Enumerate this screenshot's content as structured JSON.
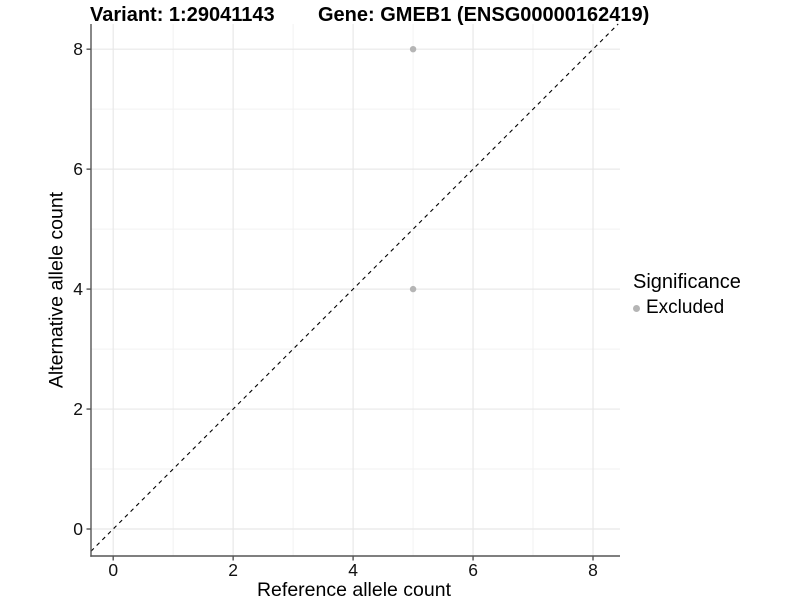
{
  "header": {
    "variant_title": "Variant: 1:29041143",
    "gene_title": "Gene: GMEB1 (ENSG00000162419)"
  },
  "legend": {
    "title": "Significance",
    "items": [
      {
        "label": "Excluded",
        "color": "#b5b5b5"
      }
    ]
  },
  "chart_data": {
    "type": "scatter",
    "title": "Variant: 1:29041143 | Gene: GMEB1 (ENSG00000162419)",
    "xlabel": "Reference allele count",
    "ylabel": "Alternative allele count",
    "xlim": [
      -0.37,
      8.45
    ],
    "ylim": [
      -0.45,
      8.42
    ],
    "x_ticks": [
      0,
      2,
      4,
      6,
      8
    ],
    "y_ticks": [
      0,
      2,
      4,
      6,
      8
    ],
    "x_minor_ticks": [
      1,
      3,
      5,
      7
    ],
    "y_minor_ticks": [
      1,
      3,
      5,
      7
    ],
    "grid": true,
    "legend_position": "right",
    "series": [
      {
        "name": "Excluded",
        "color": "#b5b5b5",
        "marker": "circle",
        "marker_radius": 3.2,
        "points": [
          {
            "x": 5,
            "y": 8
          },
          {
            "x": 5,
            "y": 4
          }
        ]
      }
    ],
    "reference_line": {
      "kind": "identity",
      "slope": 1,
      "intercept": 0,
      "style": "dashed",
      "color": "#000000"
    }
  },
  "style": {
    "background": "#ffffff",
    "axis_color": "#555555",
    "tick_label_color": "#111111",
    "tick_label_size": 17.5,
    "grid_major_color": "#e8e8e8",
    "grid_minor_color": "#f2f2f2"
  }
}
